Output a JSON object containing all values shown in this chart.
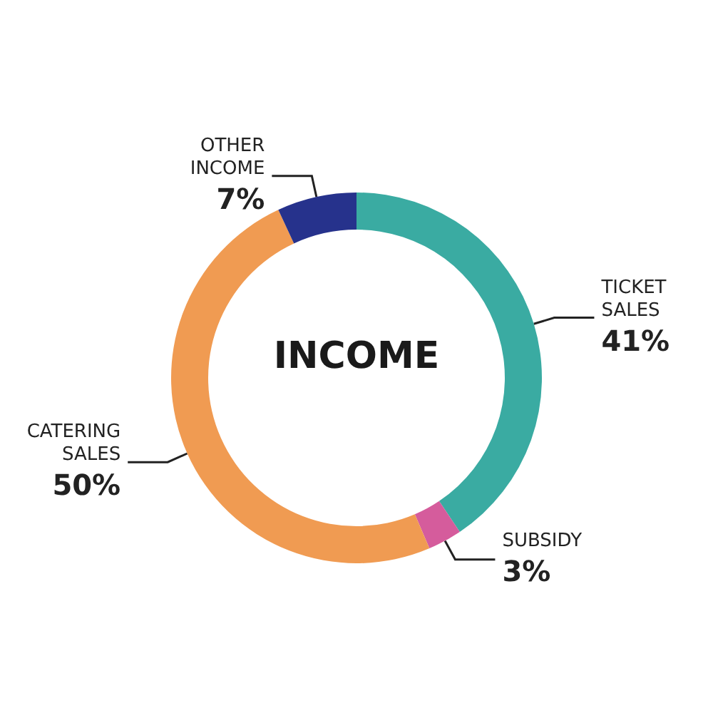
{
  "chart_data": {
    "type": "donut",
    "title": "INCOME",
    "categories": [
      "TICKET SALES",
      "SUBSIDY",
      "CATERING SALES",
      "OTHER INCOME"
    ],
    "values": [
      41,
      3,
      50,
      7
    ],
    "value_labels": [
      "41%",
      "3%",
      "50%",
      "7%"
    ],
    "colors": [
      "#3aaba2",
      "#d55c9c",
      "#f09b52",
      "#26328c"
    ],
    "legend": false
  }
}
